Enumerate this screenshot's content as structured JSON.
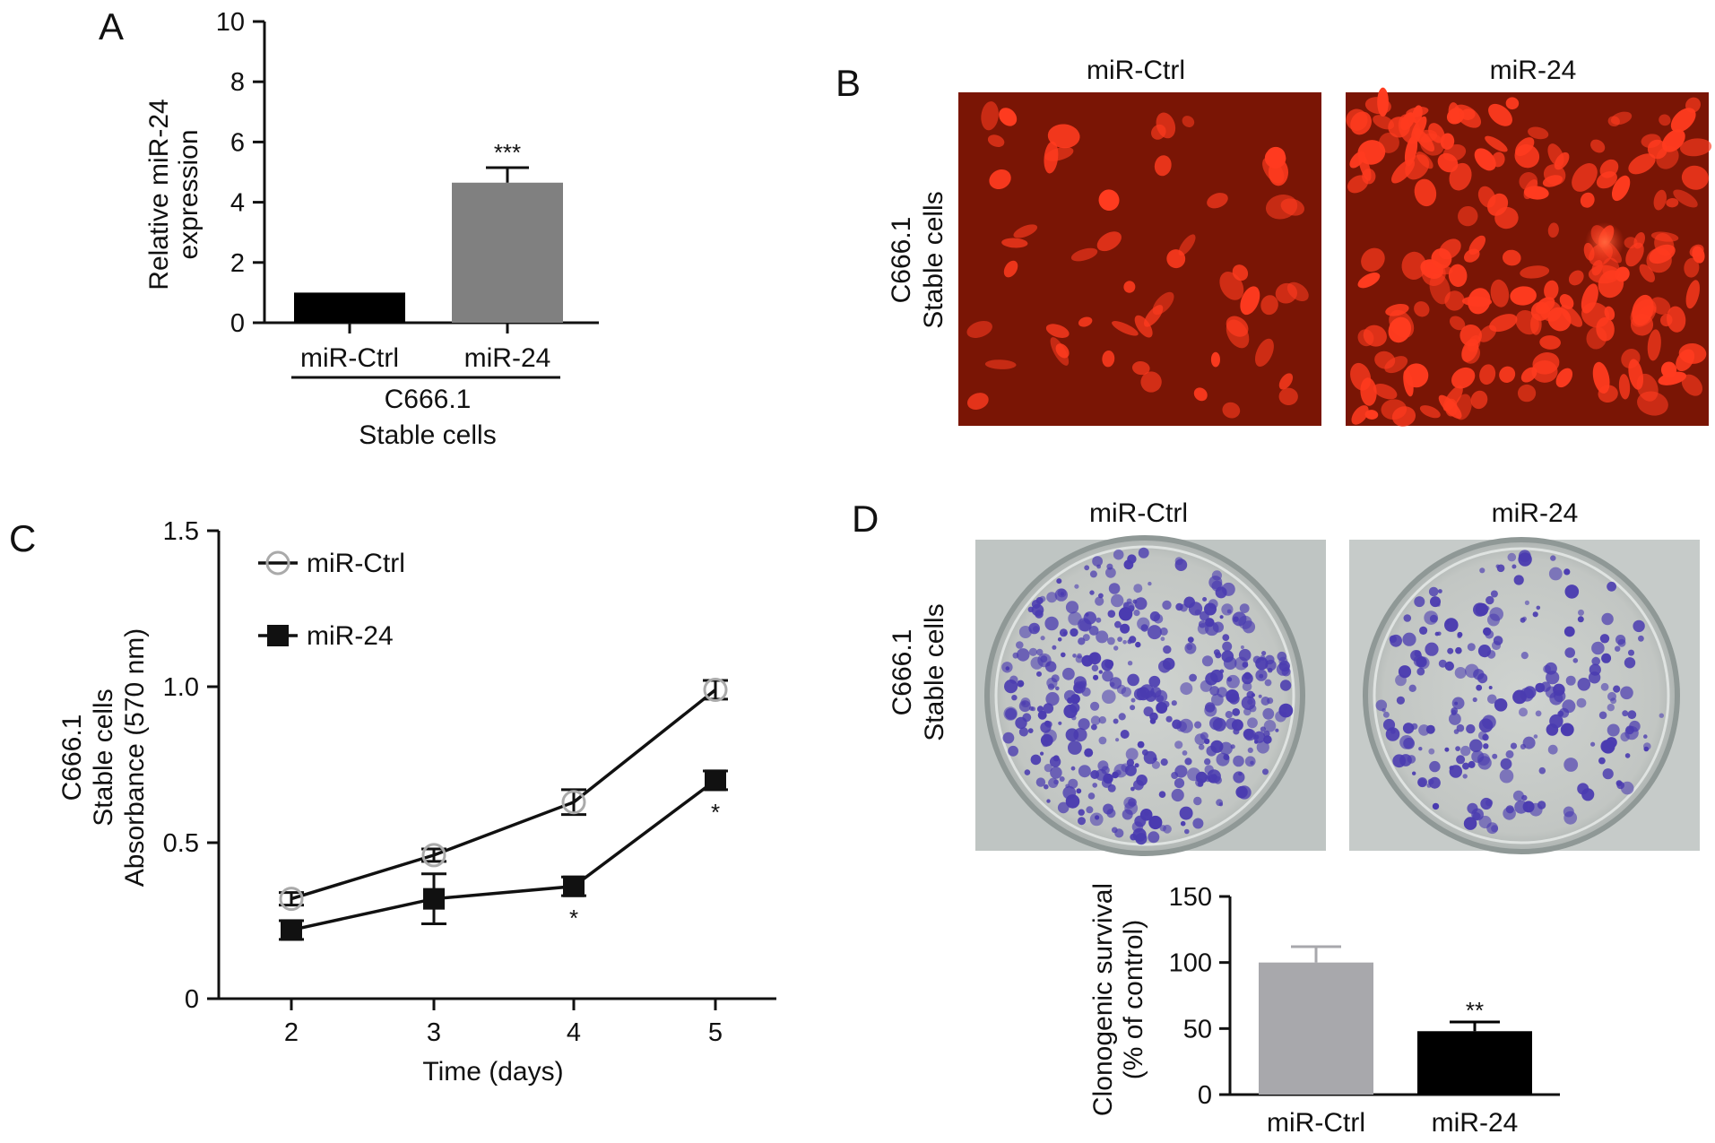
{
  "panels": {
    "A": {
      "label": "A"
    },
    "B": {
      "label": "B",
      "left_title": "miR-Ctrl",
      "right_title": "miR-24",
      "ylabel_line1": "C666.1",
      "ylabel_line2": "Stable cells"
    },
    "C": {
      "label": "C"
    },
    "D": {
      "label": "D",
      "left_title": "miR-Ctrl",
      "right_title": "miR-24",
      "ylabel_line1": "C666.1",
      "ylabel_line2": "Stable cells"
    }
  },
  "colors": {
    "fluorescence_bg": "#7a1505",
    "cell": "#ff3b1f",
    "dish_bg": "#c4c8c5",
    "colony": "#4a3bb0",
    "bar_black": "#000000",
    "bar_gray": "#808080",
    "bar_lightgray": "#a8a8ac"
  },
  "chart_data": [
    {
      "id": "A",
      "type": "bar",
      "categories": [
        "miR-Ctrl",
        "miR-24"
      ],
      "values": [
        1.0,
        4.65
      ],
      "errors": [
        0.0,
        0.5
      ],
      "annotations": [
        "",
        "***"
      ],
      "group_label_line1": "C666.1",
      "group_label_line2": "Stable cells",
      "ylabel_line1": "Relative miR-24",
      "ylabel_line2": "expression",
      "ylim": [
        0,
        10
      ],
      "yticks": [
        "0",
        "2",
        "4",
        "6",
        "8",
        "10"
      ]
    },
    {
      "id": "C",
      "type": "line",
      "x": [
        2,
        3,
        4,
        5
      ],
      "xticks": [
        "2",
        "3",
        "4",
        "5"
      ],
      "series": [
        {
          "name": "miR-Ctrl",
          "values": [
            0.32,
            0.46,
            0.63,
            0.99
          ],
          "errors": [
            0.02,
            0.02,
            0.04,
            0.03
          ],
          "marker": "open-circle",
          "annotations": [
            "",
            "",
            "",
            ""
          ]
        },
        {
          "name": "miR-24",
          "values": [
            0.22,
            0.32,
            0.36,
            0.7
          ],
          "errors": [
            0.03,
            0.08,
            0.03,
            0.03
          ],
          "marker": "filled-square",
          "annotations": [
            "",
            "",
            "*",
            "*"
          ]
        }
      ],
      "xlabel": "Time (days)",
      "ylabel_line1": "C666.1",
      "ylabel_line2": "Stable cells",
      "ylabel_line3": "Absorbance (570 nm)",
      "ylim": [
        0,
        1.5
      ],
      "yticks": [
        "0",
        "0.5",
        "1.0",
        "1.5"
      ],
      "legend_placement": "top-left"
    },
    {
      "id": "D",
      "type": "bar",
      "categories": [
        "miR-Ctrl",
        "miR-24"
      ],
      "values": [
        100,
        48
      ],
      "errors": [
        12,
        7
      ],
      "annotations": [
        "",
        "**"
      ],
      "ylabel_line1": "Clonogenic survival",
      "ylabel_line2": "(% of control)",
      "ylim": [
        0,
        150
      ],
      "yticks": [
        "0",
        "50",
        "100",
        "150"
      ]
    }
  ]
}
